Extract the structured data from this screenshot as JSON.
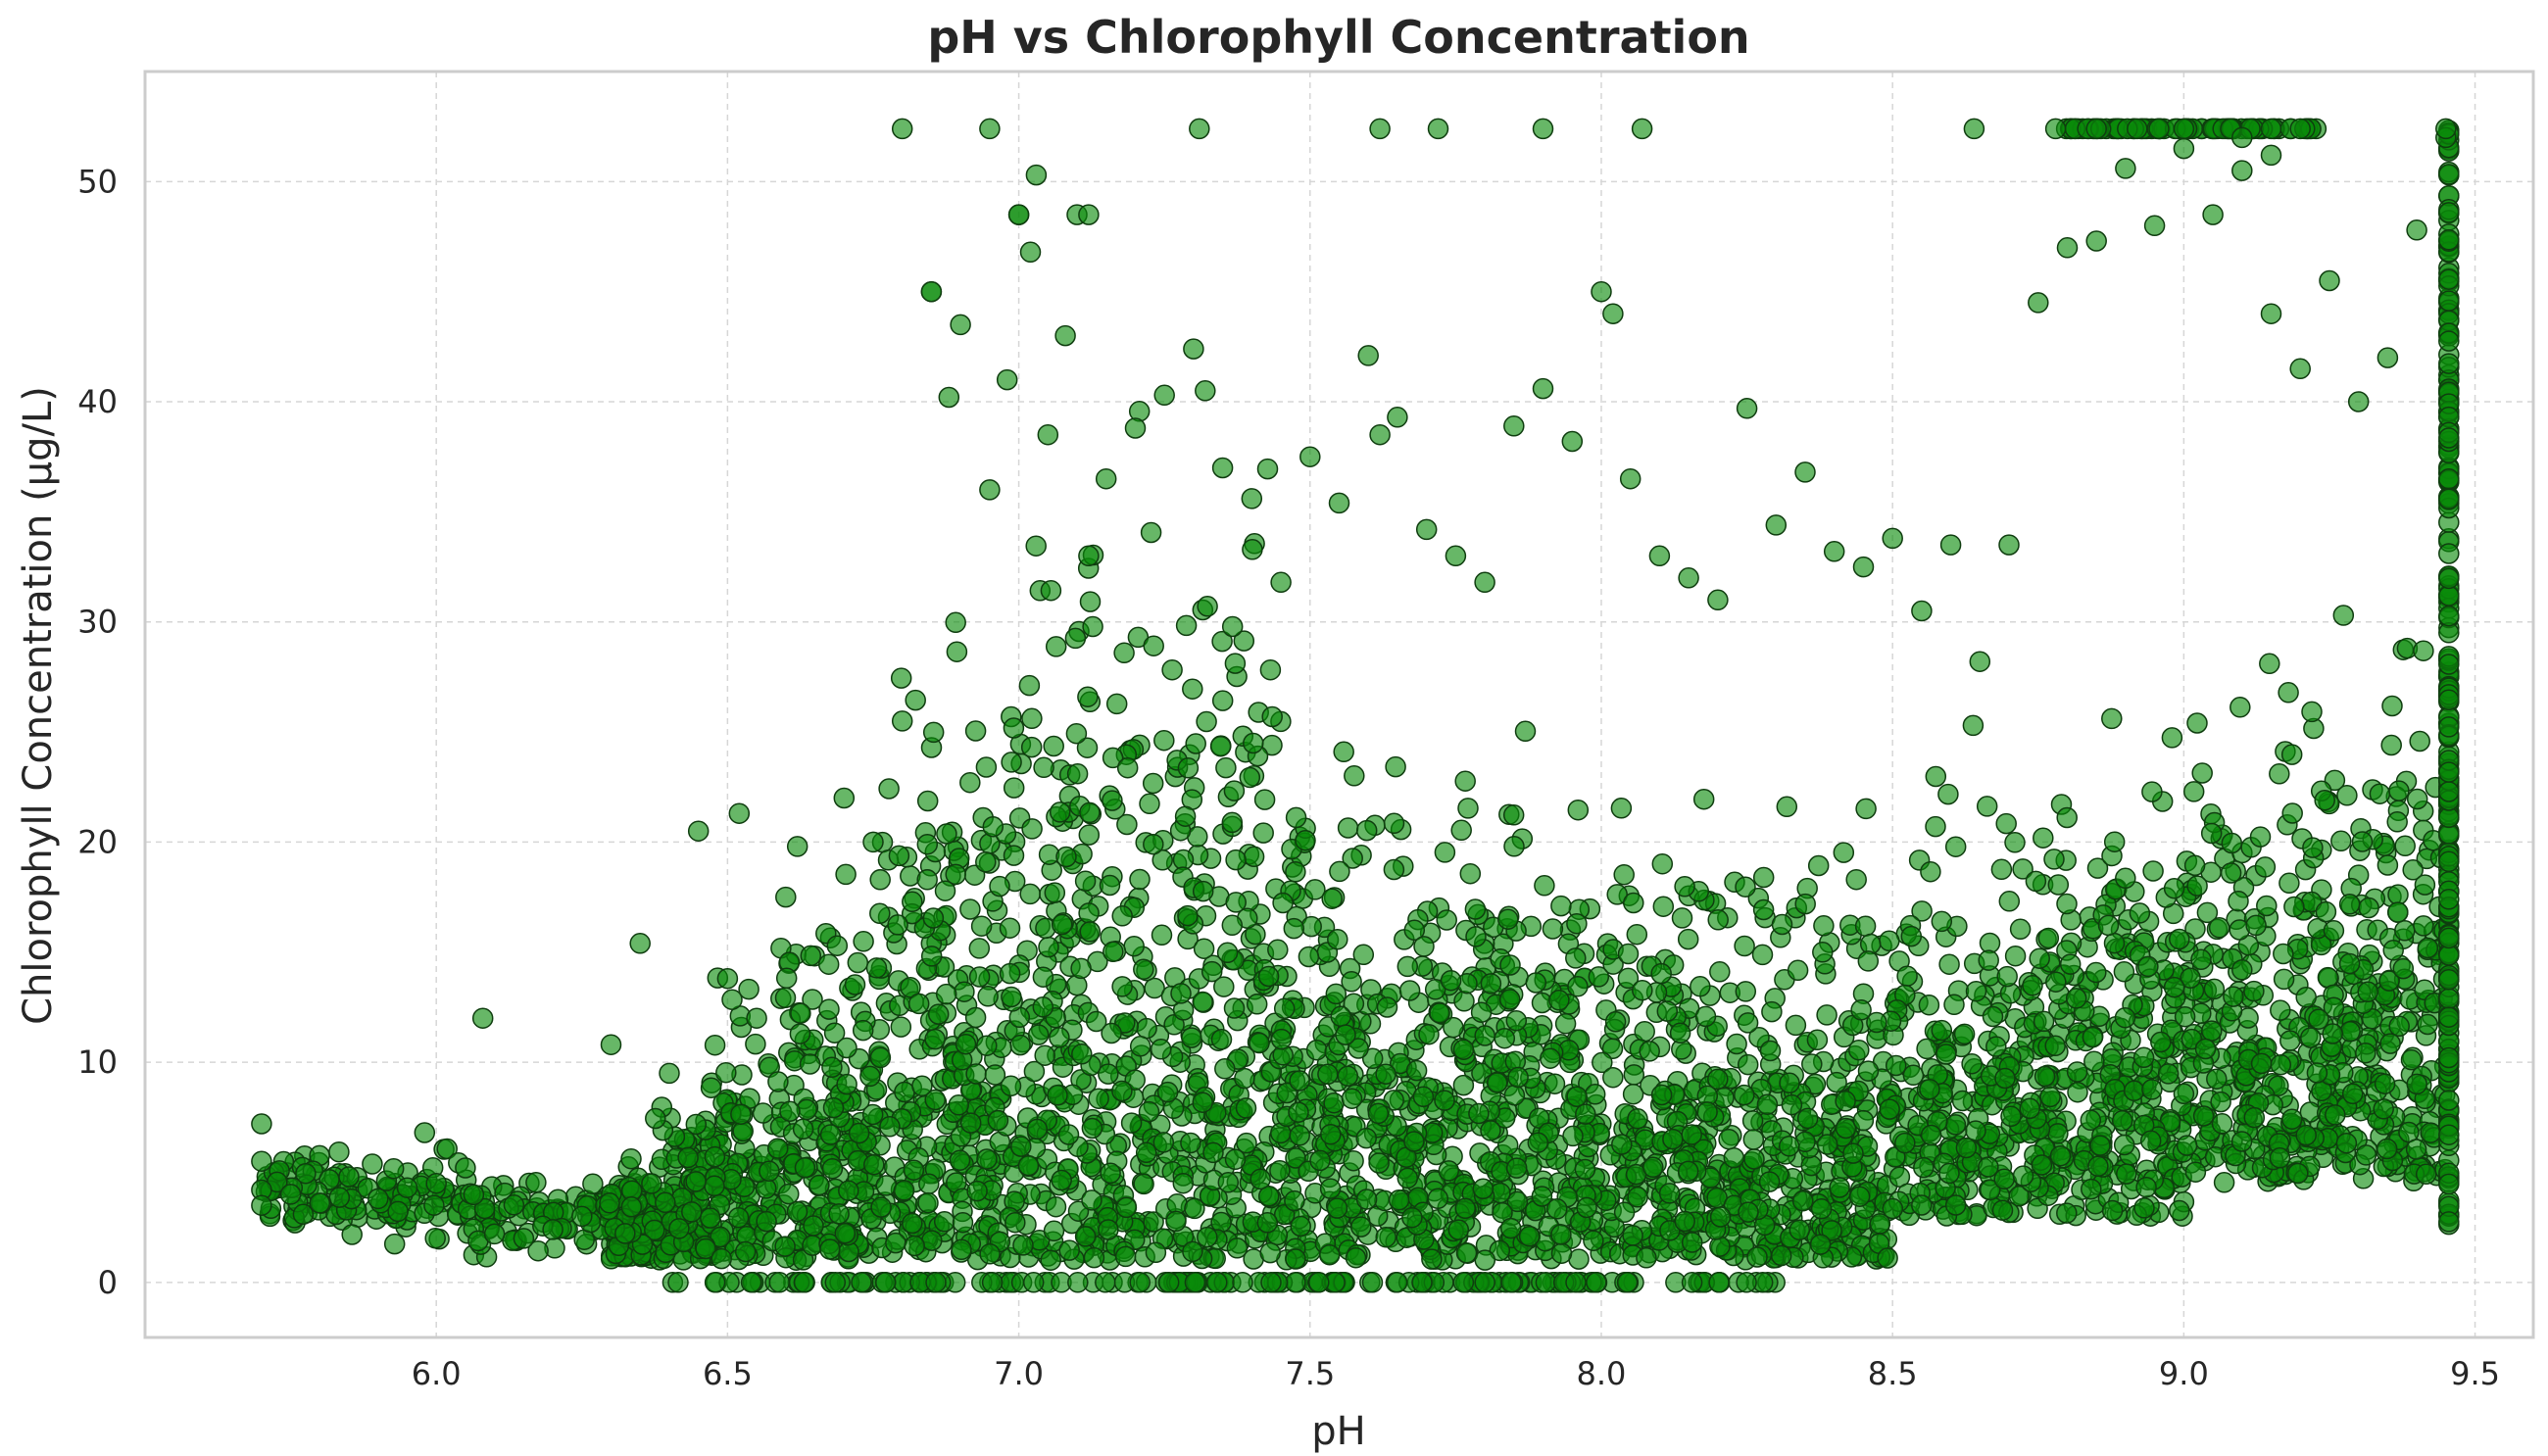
{
  "chart_data": {
    "type": "scatter",
    "title": "pH vs Chlorophyll Concentration",
    "xlabel": "pH",
    "ylabel": "Chlorophyll Concentration (µg/L)",
    "xlim": [
      5.5,
      9.6
    ],
    "ylim": [
      -2.5,
      55
    ],
    "xticks": [
      6.0,
      6.5,
      7.0,
      7.5,
      8.0,
      8.5,
      9.0,
      9.5
    ],
    "xtick_labels": [
      "6.0",
      "6.5",
      "7.0",
      "7.5",
      "8.0",
      "8.5",
      "9.0",
      "9.5"
    ],
    "yticks": [
      0,
      10,
      20,
      30,
      40,
      50
    ],
    "ytick_labels": [
      "0",
      "10",
      "20",
      "30",
      "40",
      "50"
    ],
    "grid": true,
    "marker_color": "#008000",
    "marker_edge_color": "#003300",
    "series": [
      {
        "values_x": [
          5.7,
          5.7,
          5.7,
          5.7,
          5.75,
          5.8,
          5.85,
          5.9,
          5.95,
          5.98,
          6.0,
          6.05,
          6.08,
          6.1,
          6.15,
          6.2,
          6.25,
          6.3,
          6.35,
          6.4,
          6.45,
          6.5,
          6.52,
          6.55,
          6.6,
          6.62,
          6.7,
          6.75,
          6.8,
          6.85,
          6.88,
          6.9,
          6.95,
          6.98,
          7.0,
          7.02,
          7.05,
          7.08,
          7.1,
          7.12,
          7.15,
          7.2,
          7.25,
          7.3,
          7.32,
          7.35,
          7.4,
          7.45,
          7.5,
          7.55,
          7.6,
          7.62,
          7.65,
          7.7,
          7.75,
          7.8,
          7.85,
          7.9,
          7.95,
          8.0,
          8.02,
          8.05,
          8.1,
          8.15,
          8.2,
          8.25,
          8.3,
          8.35,
          8.4,
          8.45,
          8.5,
          8.55,
          8.6,
          8.65,
          8.7,
          8.75,
          8.8,
          8.85,
          8.9,
          8.95,
          9.0,
          9.05,
          9.1,
          9.15,
          9.2,
          9.25,
          9.3,
          9.35,
          9.4,
          9.45,
          6.8,
          6.95,
          7.31,
          7.62,
          7.72,
          7.9,
          8.07,
          8.64,
          8.78,
          8.85,
          8.92,
          9.0,
          9.08,
          9.15,
          9.2,
          9.45,
          7.03,
          7.0,
          6.85,
          7.12,
          9.1,
          9.15
        ],
        "values_y": [
          7.2,
          5.5,
          4.2,
          3.5,
          4.0,
          3.6,
          4.8,
          3.8,
          4.3,
          6.8,
          4.5,
          5.2,
          12.0,
          2.2,
          2.0,
          2.4,
          3.0,
          10.8,
          15.4,
          9.5,
          20.5,
          13.8,
          21.3,
          12.0,
          17.5,
          19.8,
          22.0,
          20.0,
          25.5,
          45.0,
          40.2,
          43.5,
          36.0,
          41.0,
          48.5,
          46.8,
          38.5,
          43.0,
          48.5,
          33.0,
          36.5,
          38.8,
          40.3,
          42.4,
          40.5,
          37.0,
          35.6,
          31.8,
          37.5,
          35.4,
          42.1,
          38.5,
          39.3,
          34.2,
          33.0,
          31.8,
          38.9,
          40.6,
          38.2,
          45.0,
          44.0,
          36.5,
          33.0,
          32.0,
          31.0,
          39.7,
          34.4,
          36.8,
          33.2,
          32.5,
          33.8,
          30.5,
          33.5,
          28.2,
          33.5,
          44.5,
          47.0,
          47.3,
          50.6,
          48.0,
          51.5,
          48.5,
          50.5,
          44.0,
          41.5,
          45.5,
          40.0,
          42.0,
          47.8,
          52.0,
          52.4,
          52.4,
          52.4,
          52.4,
          52.4,
          52.4,
          52.4,
          52.4,
          52.4,
          52.4,
          52.4,
          52.4,
          52.4,
          52.4,
          52.4,
          52.4,
          50.3,
          48.5,
          45.0,
          48.5,
          52.0,
          51.2
        ]
      }
    ]
  }
}
